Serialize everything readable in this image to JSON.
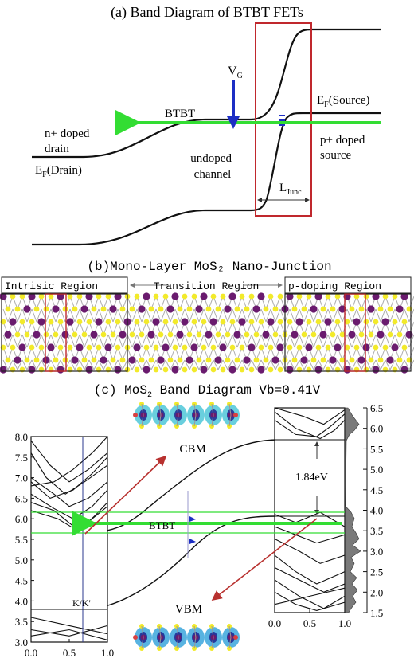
{
  "panel_a": {
    "title": "(a) Band Diagram of BTBT FETs",
    "vg": "V",
    "vg_sub": "G",
    "btbt": "BTBT",
    "ef_source_pre": "E",
    "ef_source_sub": "F",
    "ef_source_post": "(Source)",
    "drain_line1": "n+ doped",
    "drain_line2": "drain",
    "ef_drain_pre": "E",
    "ef_drain_sub": "F",
    "ef_drain_post": "(Drain)",
    "channel_line1": "undoped",
    "channel_line2": "channel",
    "source_line1": "p+ doped",
    "source_line2": "source",
    "ljunc_pre": "L",
    "ljunc_sub": "Junc"
  },
  "panel_b": {
    "title": "(b)Mono-Layer MoS₂ Nano-Junction",
    "intrinsic": "Intrisic Region",
    "transition": "Transition Region",
    "pdoping": "p-doping Region"
  },
  "panel_c": {
    "title_pre": "(c) MoS",
    "title_sub": "2",
    "title_post": " Band Diagram Vb=0.41V",
    "cbm": "CBM",
    "vbm": "VBM",
    "btbt": "BTBT",
    "kk": "K/K'",
    "gap": "1.84eV",
    "left_y_ticks": [
      "3.0",
      "3.5",
      "4.0",
      "4.5",
      "5.0",
      "5.5",
      "6.0",
      "6.5",
      "7.0",
      "7.5",
      "8.0"
    ],
    "right_y_ticks": [
      "1.5",
      "2.0",
      "2.5",
      "3.0",
      "3.5",
      "4.0",
      "4.5",
      "5.0",
      "5.5",
      "6.0",
      "6.5"
    ],
    "left_x_ticks": [
      "0.0",
      "0.5",
      "1.0"
    ],
    "right_x_ticks": [
      "0.0",
      "0.5",
      "1.0"
    ]
  },
  "colors": {
    "frame_red": "#c0282d",
    "arrow_green": "#33dd33",
    "arrow_blue": "#1d2ec4",
    "mo_purple": "#6a1b6e",
    "s_yellow": "#f2ea2a",
    "kline_blue": "#2b3a8f",
    "arrow_red": "#b8312f"
  }
}
